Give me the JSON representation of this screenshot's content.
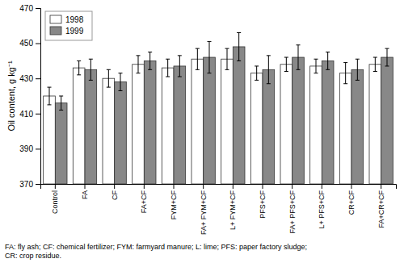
{
  "chart_data": {
    "type": "bar",
    "categories": [
      "Control",
      "FA",
      "CF",
      "FA+CF",
      "FYM+CF",
      "FA+ FYM+CF",
      "L+ FYM+CF",
      "PFS+CF",
      "FA+ PFS+CF",
      "L+ PFS+CF",
      "CR+CF",
      "FA+CR+CF"
    ],
    "series": [
      {
        "name": "1998",
        "color": "#ffffff",
        "values": [
          420,
          436,
          430,
          438,
          436,
          441,
          441,
          433,
          438,
          437,
          433,
          438
        ],
        "errors": [
          5,
          4,
          5,
          5,
          5,
          6,
          6,
          4,
          4,
          4,
          6,
          4
        ]
      },
      {
        "name": "1999",
        "color": "#888888",
        "values": [
          416,
          435,
          428,
          440,
          437,
          442,
          448,
          435,
          442,
          440,
          435,
          442
        ],
        "errors": [
          4,
          6,
          5,
          5,
          6,
          9,
          8,
          8,
          7,
          5,
          6,
          5
        ]
      }
    ],
    "ylabel": "Oil content, g kg⁻¹",
    "ylim": [
      370,
      470
    ],
    "yticks": [
      370,
      390,
      410,
      430,
      450,
      470
    ],
    "legend": "upper-left",
    "grid": false,
    "caption": "FA: fly ash; CF: chemical fertilizer; FYM: farmyard manure; L: lime; PFS: paper factory sludge;\nCR: crop residue."
  }
}
